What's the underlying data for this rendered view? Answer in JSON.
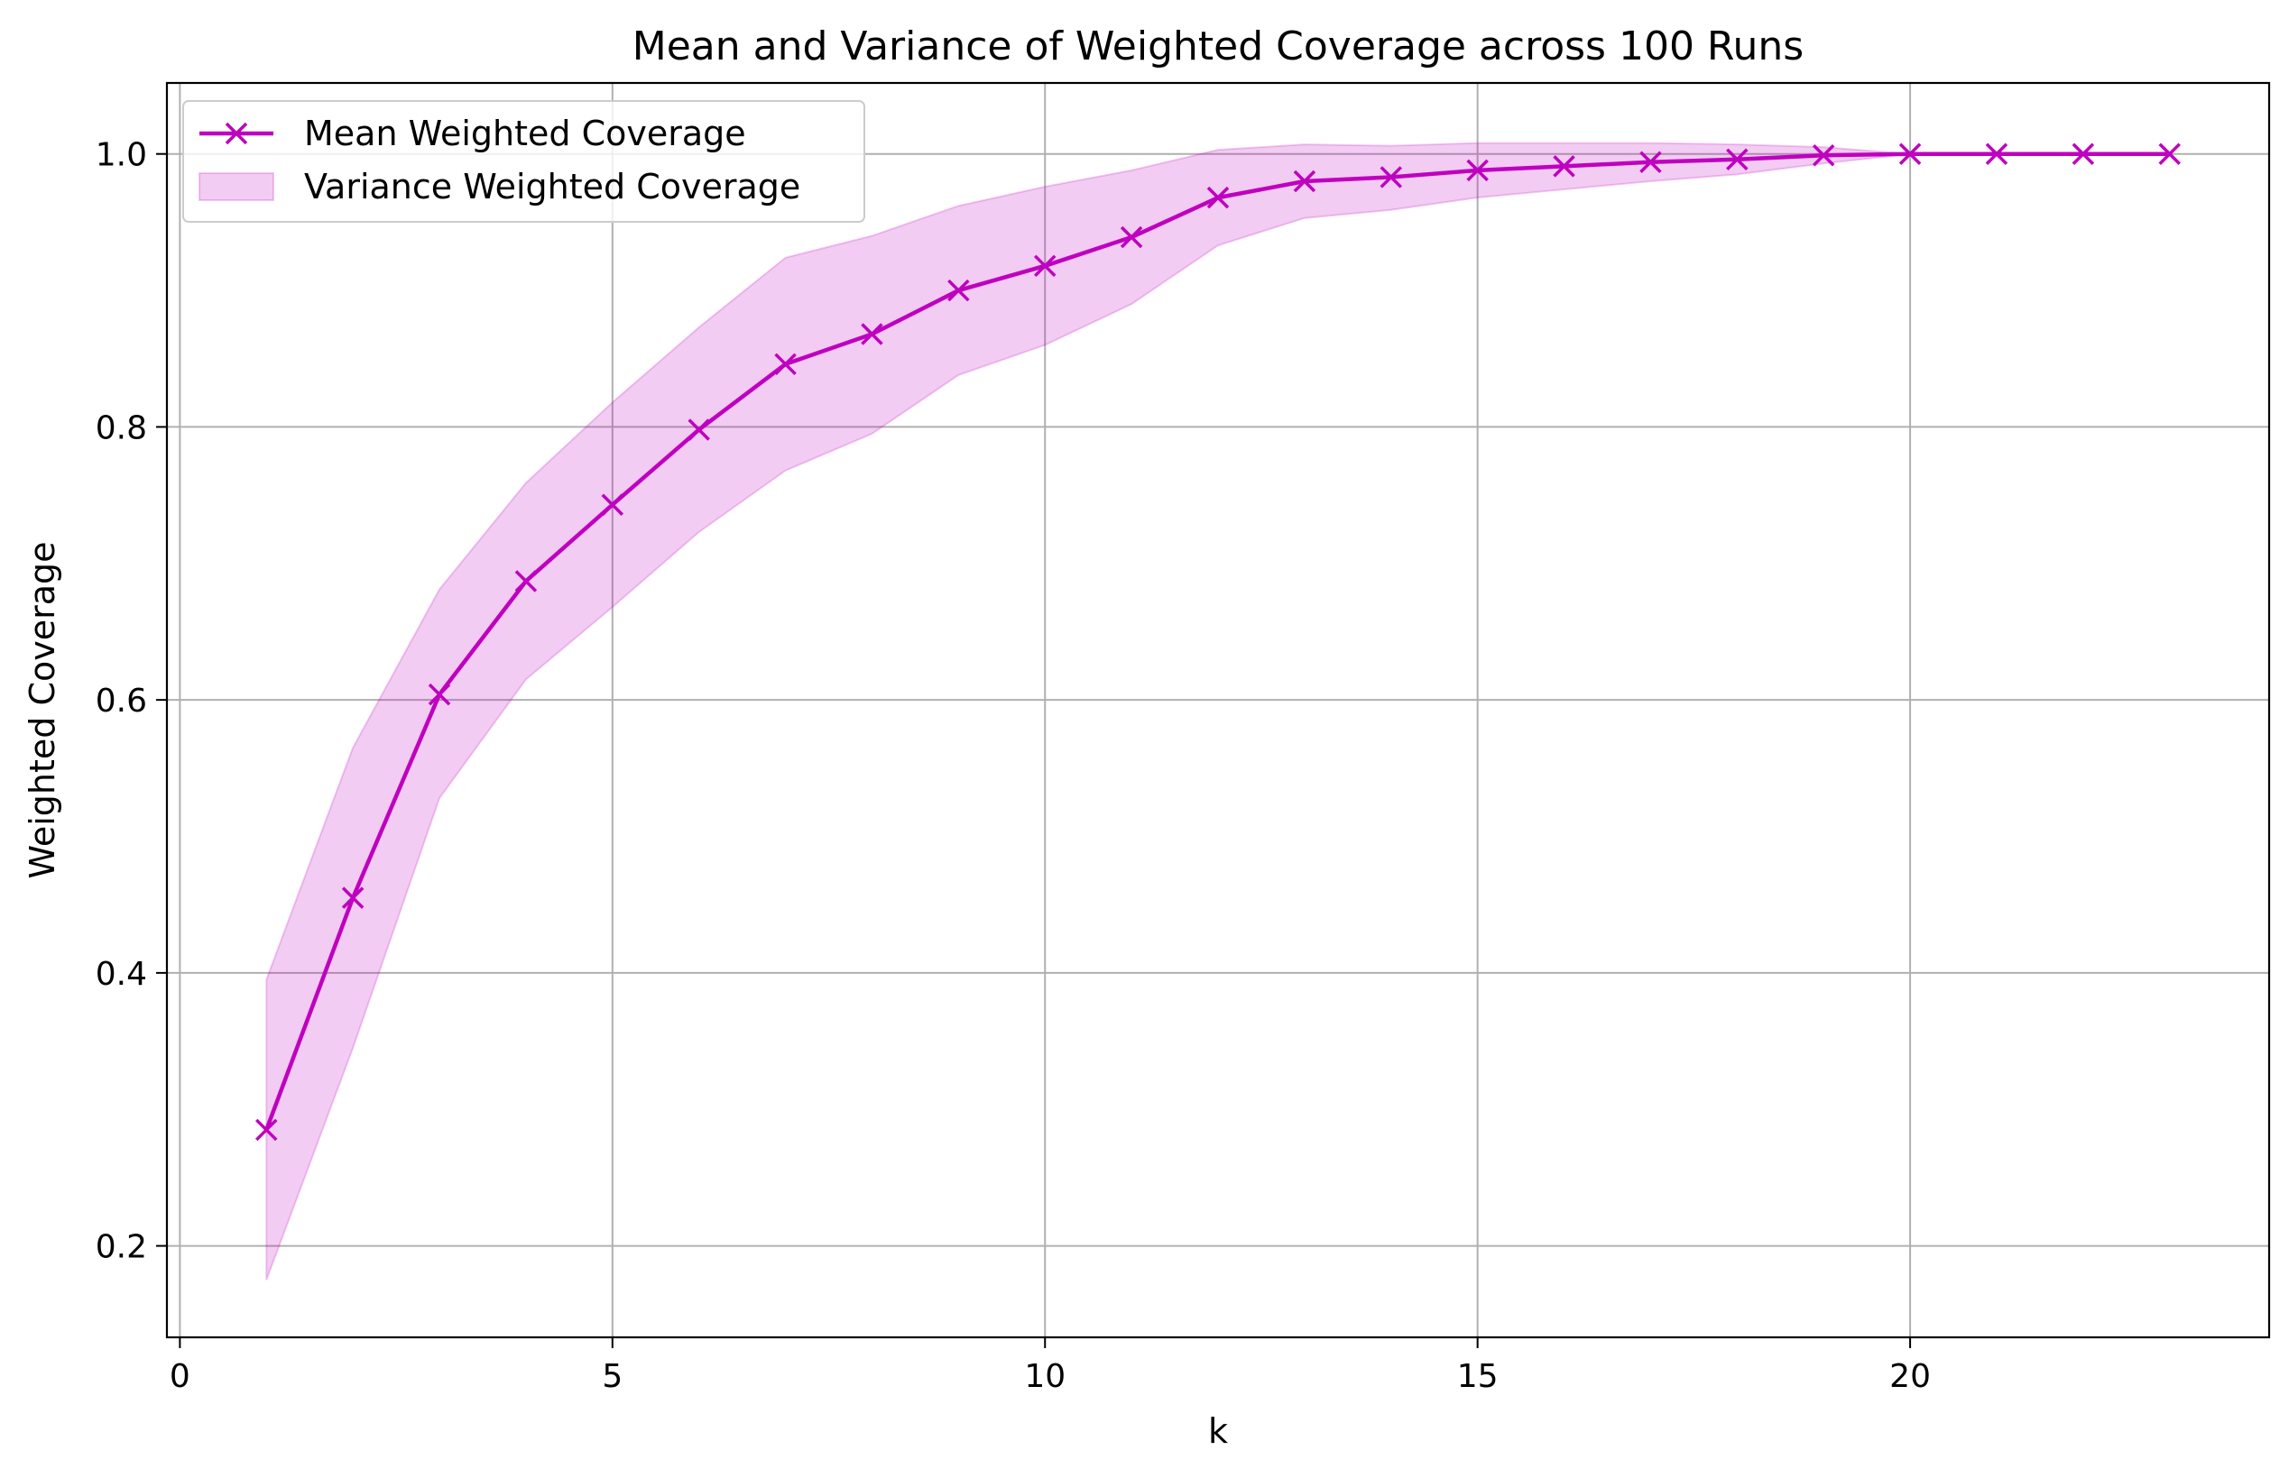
{
  "chart_data": {
    "type": "line",
    "title": "Mean and Variance of Weighted Coverage across 100 Runs",
    "xlabel": "k",
    "ylabel": "Weighted Coverage",
    "xlim": [
      -0.15,
      24.15
    ],
    "ylim": [
      0.133,
      1.052
    ],
    "xticks": [
      0,
      5,
      10,
      15,
      20
    ],
    "xtick_labels": [
      "0",
      "5",
      "10",
      "15",
      "20"
    ],
    "yticks": [
      0.2,
      0.4,
      0.6,
      0.8,
      1.0
    ],
    "ytick_labels": [
      "0.2",
      "0.4",
      "0.6",
      "0.8",
      "1.0"
    ],
    "grid": true,
    "legend_position": "top-left",
    "series": [
      {
        "name": "Mean Weighted Coverage",
        "kind": "line",
        "marker": "x",
        "color": "#bf00bf",
        "x": [
          1,
          2,
          3,
          4,
          5,
          6,
          7,
          8,
          9,
          10,
          11,
          12,
          13,
          14,
          15,
          16,
          17,
          18,
          19,
          20,
          21,
          22,
          23
        ],
        "y": [
          0.285,
          0.455,
          0.604,
          0.687,
          0.743,
          0.798,
          0.846,
          0.868,
          0.9,
          0.918,
          0.939,
          0.968,
          0.98,
          0.983,
          0.988,
          0.991,
          0.994,
          0.996,
          0.999,
          1.0,
          1.0,
          1.0,
          1.0
        ]
      },
      {
        "name": "Variance Weighted Coverage",
        "kind": "band",
        "color": "#bf00bf",
        "x": [
          1,
          2,
          3,
          4,
          5,
          6,
          7,
          8,
          9,
          10,
          11,
          12,
          13,
          14,
          15,
          16,
          17,
          18,
          19,
          20
        ],
        "upper": [
          0.395,
          0.565,
          0.681,
          0.759,
          0.818,
          0.873,
          0.924,
          0.94,
          0.962,
          0.976,
          0.988,
          1.003,
          1.007,
          1.006,
          1.008,
          1.008,
          1.008,
          1.007,
          1.005,
          1.0
        ],
        "lower": [
          0.175,
          0.345,
          0.528,
          0.615,
          0.668,
          0.723,
          0.768,
          0.795,
          0.838,
          0.86,
          0.89,
          0.933,
          0.953,
          0.959,
          0.968,
          0.974,
          0.98,
          0.985,
          0.993,
          1.0
        ]
      }
    ]
  }
}
